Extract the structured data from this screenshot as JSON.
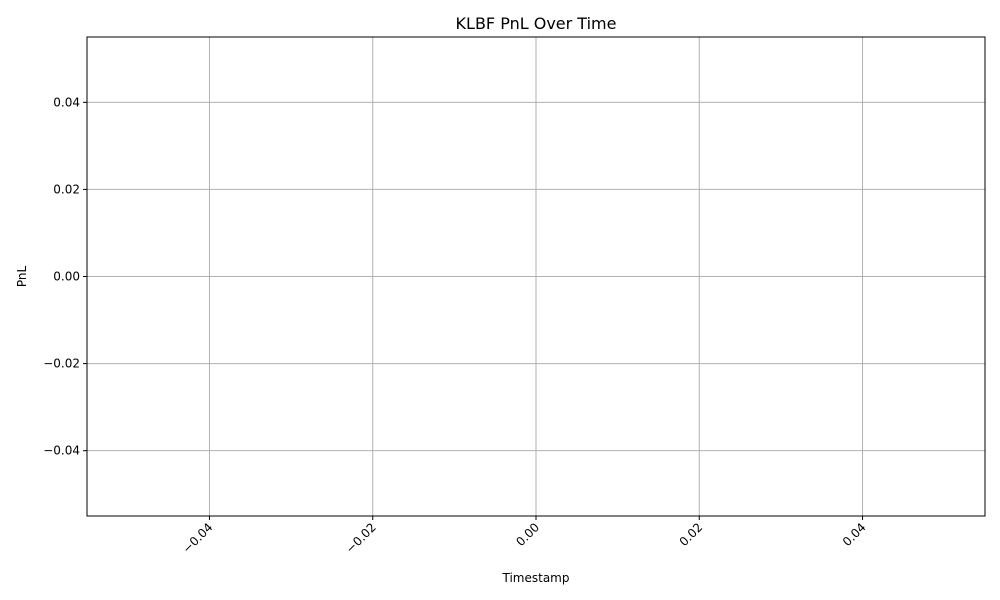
{
  "chart_data": {
    "type": "line",
    "title": "KLBF PnL Over Time",
    "xlabel": "Timestamp",
    "ylabel": "PnL",
    "x": [],
    "series": [
      {
        "values": []
      }
    ],
    "xlim": [
      -0.055,
      0.055
    ],
    "ylim": [
      -0.055,
      0.055
    ],
    "xticks": [
      -0.04,
      -0.02,
      0.0,
      0.02,
      0.04
    ],
    "xtick_labels": [
      "−0.04",
      "−0.02",
      "0.00",
      "0.02",
      "0.04"
    ],
    "yticks": [
      -0.04,
      -0.02,
      0.0,
      0.02,
      0.04
    ],
    "ytick_labels": [
      "−0.04",
      "−0.02",
      "0.00",
      "0.02",
      "0.04"
    ],
    "xtick_rotation": 45,
    "grid": true,
    "legend": "none"
  }
}
